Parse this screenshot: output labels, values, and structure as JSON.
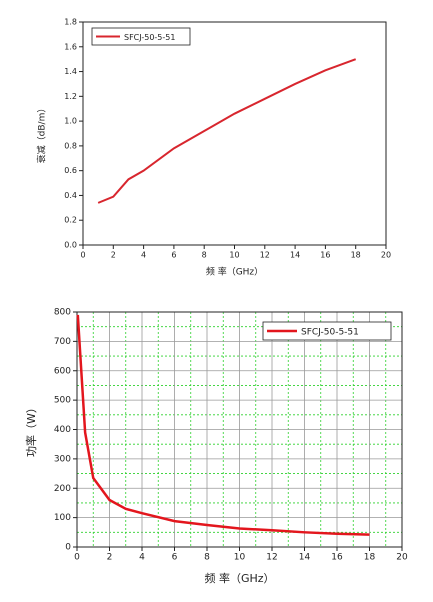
{
  "chart_data": [
    {
      "type": "line",
      "x_label": "频 率（GHz）",
      "y_label": "衰减（dB/m）",
      "xlim": [
        0,
        20
      ],
      "xticks": [
        0,
        2,
        4,
        6,
        8,
        10,
        12,
        14,
        16,
        18,
        20
      ],
      "ylim": [
        0,
        1.8
      ],
      "yticks": [
        {
          "value": 0,
          "label": "0.0"
        },
        {
          "value": 0.2,
          "label": "0.2"
        },
        {
          "value": 0.4,
          "label": "0.4"
        },
        {
          "value": 0.6,
          "label": "0.6"
        },
        {
          "value": 0.8,
          "label": "0.8"
        },
        {
          "value": 1.0,
          "label": "1.0"
        },
        {
          "value": 1.2,
          "label": "1.2"
        },
        {
          "value": 1.4,
          "label": "1.4"
        },
        {
          "value": 1.6,
          "label": "1.6"
        },
        {
          "value": 1.8,
          "label": "1.8"
        }
      ],
      "grid": false,
      "series": [
        {
          "name": "SFCJ-50-5-51",
          "color": "#d8262e",
          "x": [
            1,
            2,
            3,
            4,
            6,
            8,
            10,
            12,
            14,
            16,
            18
          ],
          "values": [
            0.34,
            0.39,
            0.53,
            0.6,
            0.78,
            0.92,
            1.06,
            1.18,
            1.3,
            1.41,
            1.5
          ]
        }
      ]
    },
    {
      "type": "line",
      "x_label": "频 率（GHz）",
      "y_label": "功率（W）",
      "xlim": [
        0,
        20
      ],
      "xticks": [
        0,
        2,
        4,
        6,
        8,
        10,
        12,
        14,
        16,
        18,
        20
      ],
      "ylim": [
        0,
        800
      ],
      "yticks": [
        0,
        100,
        200,
        300,
        400,
        500,
        600,
        700,
        800
      ],
      "grid": true,
      "series": [
        {
          "name": "SFCJ-50-5-51",
          "color": "#e3161d",
          "x": [
            0.05,
            0.5,
            1,
            2,
            3,
            4,
            6,
            8,
            10,
            12,
            14,
            16,
            18
          ],
          "values": [
            790,
            390,
            235,
            160,
            130,
            115,
            88,
            75,
            63,
            57,
            50,
            45,
            42
          ]
        }
      ]
    }
  ]
}
